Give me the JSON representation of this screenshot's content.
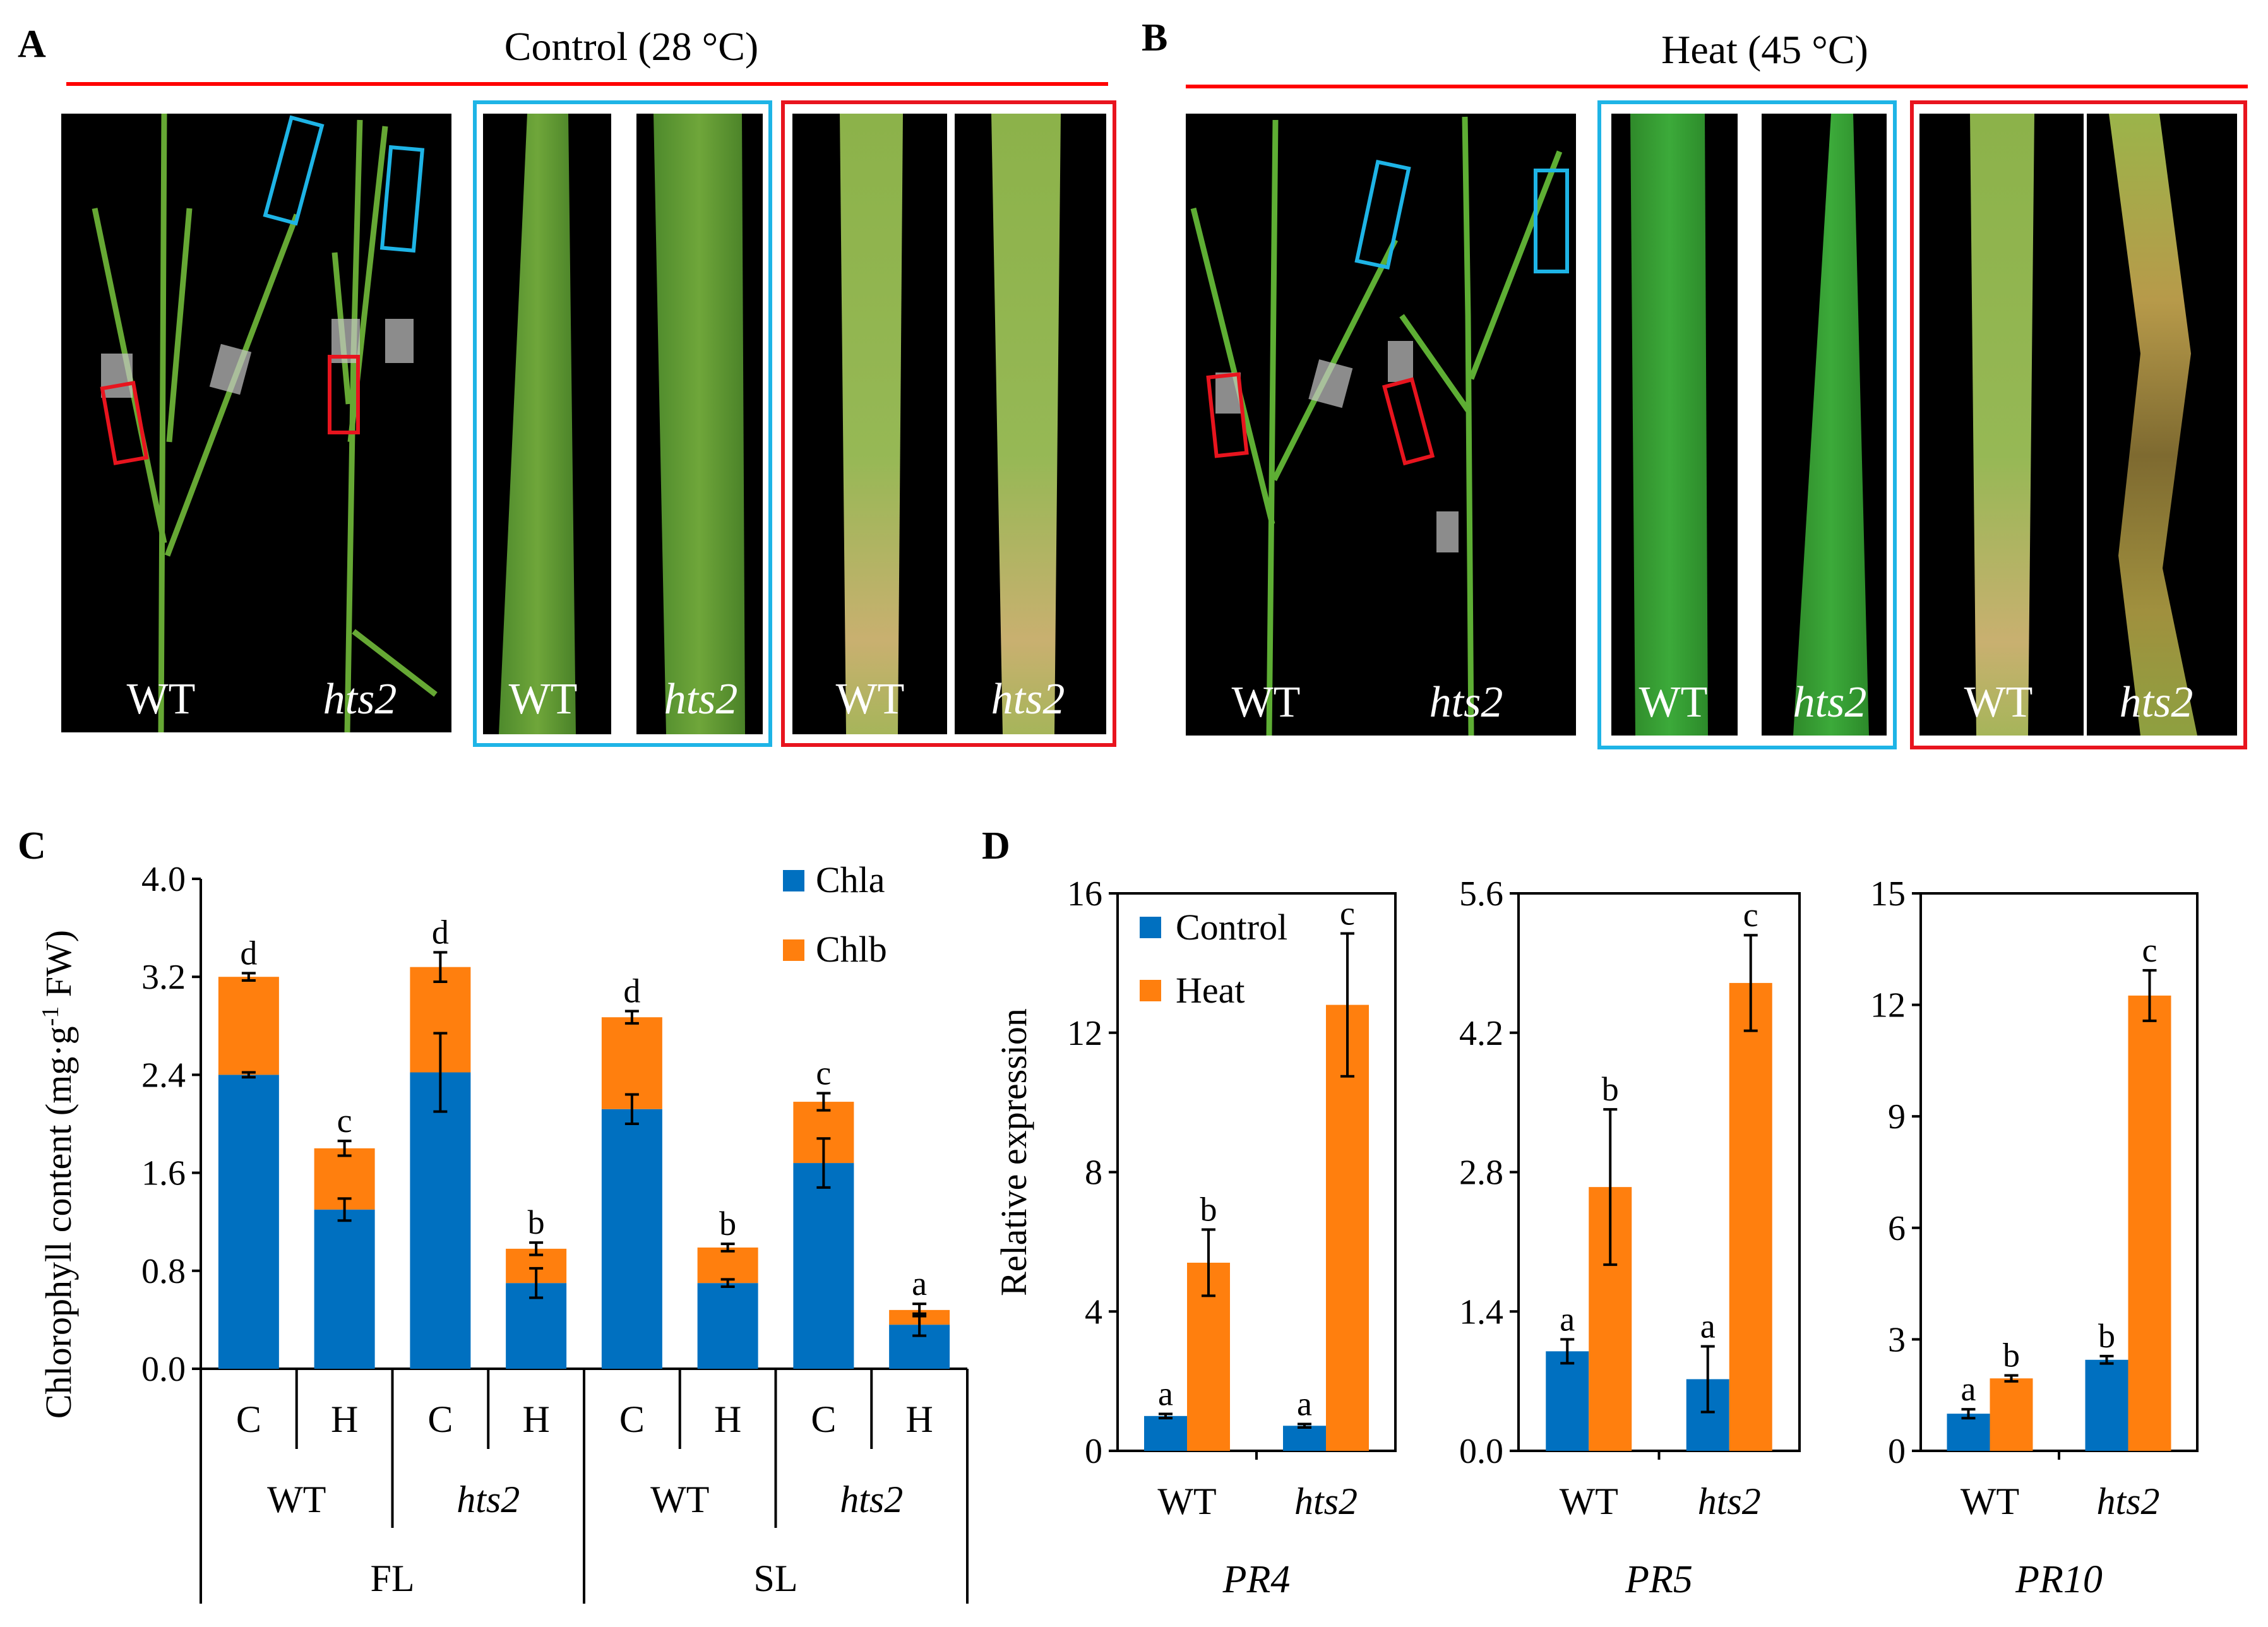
{
  "panels": {
    "a_label": "A",
    "b_label": "B",
    "c_label": "C",
    "d_label": "D",
    "a_title": "Control (28 °C)",
    "b_title": "Heat (45 °C)",
    "photo_labels": {
      "wt": "WT",
      "hts2": "hts2"
    }
  },
  "colors": {
    "chla": "#0070C0",
    "chlb": "#FF7F0E",
    "control": "#0070C0",
    "heat": "#FF7F0E",
    "title_line": "#FF0000",
    "blue_box": "#1EB4E6",
    "red_box": "#E8141E"
  },
  "chart_data": [
    {
      "type": "bar",
      "stacked": true,
      "panel": "C",
      "ylabel_main": "Chlorophyll content (mg·g",
      "ylabel_sup": "-1",
      "ylabel_end": " FW)",
      "ylim": [
        0,
        4.0
      ],
      "yticks": [
        "0.0",
        "0.8",
        "1.6",
        "2.4",
        "3.2",
        "4.0"
      ],
      "categories": [
        "C",
        "H",
        "C",
        "H",
        "C",
        "H",
        "C",
        "H"
      ],
      "genotypes": [
        "WT",
        "hts2",
        "WT",
        "hts2"
      ],
      "tissues": [
        "FL",
        "SL"
      ],
      "series": [
        {
          "name": "Chla",
          "values": [
            2.4,
            1.3,
            2.42,
            0.7,
            2.12,
            0.7,
            1.68,
            0.36
          ]
        },
        {
          "name": "Chlb",
          "values": [
            0.8,
            0.5,
            0.86,
            0.28,
            0.75,
            0.29,
            0.5,
            0.12
          ]
        }
      ],
      "error_chla": [
        0.02,
        0.09,
        0.32,
        0.12,
        0.12,
        0.03,
        0.2,
        0.09
      ],
      "error_total": [
        0.03,
        0.06,
        0.12,
        0.05,
        0.05,
        0.03,
        0.07,
        0.05
      ],
      "letters": [
        "d",
        "c",
        "d",
        "b",
        "d",
        "b",
        "c",
        "a"
      ]
    },
    {
      "type": "bar",
      "panel": "D",
      "gene": "PR4",
      "ylabel": "Relative expression",
      "ylim": [
        0,
        16
      ],
      "yticks": [
        "0",
        "4",
        "8",
        "12",
        "16"
      ],
      "categories": [
        "WT",
        "hts2"
      ],
      "series": [
        {
          "name": "Control",
          "values": [
            1.0,
            0.72
          ],
          "errors": [
            0.06,
            0.05
          ]
        },
        {
          "name": "Heat",
          "values": [
            5.4,
            12.8
          ],
          "errors": [
            0.95,
            2.05
          ]
        }
      ],
      "letters_control": [
        "a",
        "a"
      ],
      "letters_heat": [
        "b",
        "c"
      ]
    },
    {
      "type": "bar",
      "panel": "D",
      "gene": "PR5",
      "ylim": [
        0,
        5.6
      ],
      "yticks": [
        "0.0",
        "1.4",
        "2.8",
        "4.2",
        "5.6"
      ],
      "categories": [
        "WT",
        "hts2"
      ],
      "series": [
        {
          "name": "Control",
          "values": [
            1.0,
            0.72
          ],
          "errors": [
            0.12,
            0.33
          ]
        },
        {
          "name": "Heat",
          "values": [
            2.65,
            4.7
          ],
          "errors": [
            0.78,
            0.48
          ]
        }
      ],
      "letters_control": [
        "a",
        "a"
      ],
      "letters_heat": [
        "b",
        "c"
      ]
    },
    {
      "type": "bar",
      "panel": "D",
      "gene": "PR10",
      "ylim": [
        0,
        15
      ],
      "yticks": [
        "0",
        "3",
        "6",
        "9",
        "12",
        "15"
      ],
      "categories": [
        "WT",
        "hts2"
      ],
      "series": [
        {
          "name": "Control",
          "values": [
            1.0,
            2.45
          ],
          "errors": [
            0.12,
            0.1
          ]
        },
        {
          "name": "Heat",
          "values": [
            1.95,
            12.25
          ],
          "errors": [
            0.08,
            0.68
          ]
        }
      ],
      "letters_control": [
        "a",
        "b"
      ],
      "letters_heat": [
        "b",
        "c"
      ]
    }
  ]
}
